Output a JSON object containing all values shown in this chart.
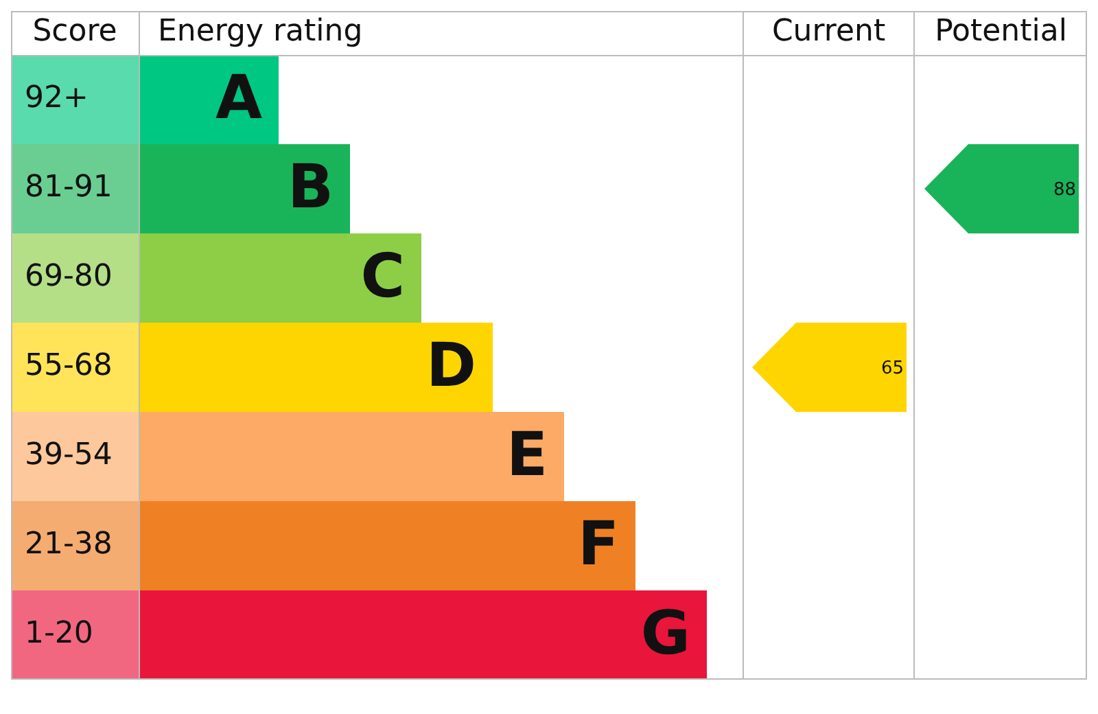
{
  "chart_data": {
    "type": "other",
    "data_labels": true,
    "ylabel": "Score",
    "xlabel": "Energy rating",
    "categories": [
      "A",
      "B",
      "C",
      "D",
      "E",
      "F",
      "G"
    ],
    "y_categories": [
      "92+",
      "81-91",
      "69-80",
      "55-68",
      "39-54",
      "21-38",
      "1-20"
    ],
    "colors": [
      "#00c781",
      "#19b459",
      "#8dce46",
      "#ffd500",
      "#fcaa65",
      "#ef8023",
      "#e9153b"
    ],
    "annotations": [
      "Current",
      "Potential"
    ],
    "series": [
      {
        "values": [
          null,
          null,
          null,
          65,
          null,
          null,
          null
        ],
        "color": "#ffd500"
      },
      {
        "values": [
          null,
          88,
          null,
          null,
          null,
          null,
          null
        ],
        "color": "#19b459"
      }
    ]
  }
}
